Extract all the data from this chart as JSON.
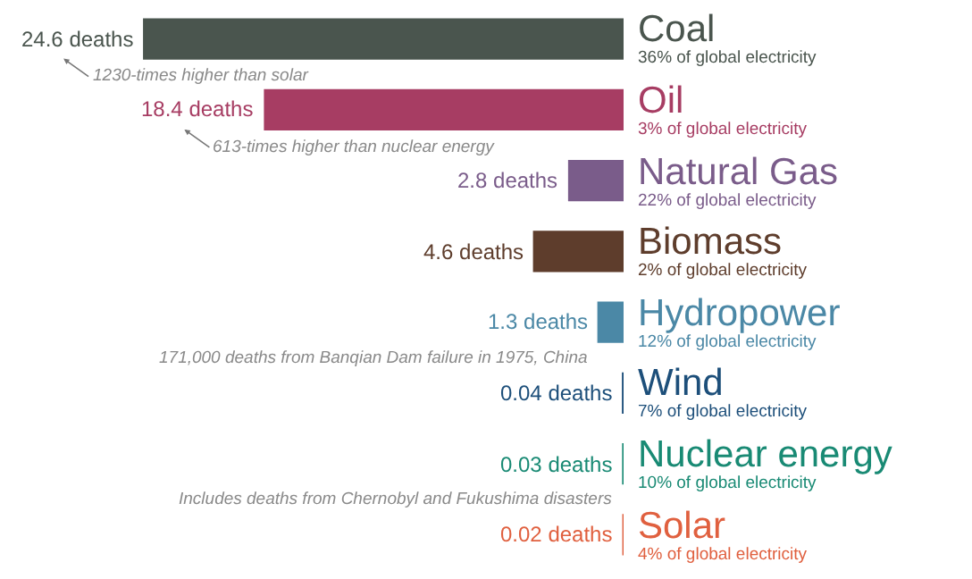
{
  "chart_data": {
    "type": "bar",
    "orientation": "horizontal",
    "categories": [
      "Coal",
      "Oil",
      "Natural Gas",
      "Biomass",
      "Hydropower",
      "Wind",
      "Nuclear energy",
      "Solar"
    ],
    "values": [
      24.6,
      18.4,
      2.8,
      4.6,
      1.3,
      0.04,
      0.03,
      0.02
    ],
    "value_labels": [
      "24.6 deaths",
      "18.4 deaths",
      "2.8 deaths",
      "4.6 deaths",
      "1.3 deaths",
      "0.04 deaths",
      "0.03 deaths",
      "0.02 deaths"
    ],
    "colors": [
      "#4a554e",
      "#a73d63",
      "#7a5c8a",
      "#5e3d2c",
      "#4b88a6",
      "#1d4f7a",
      "#198a74",
      "#e0603f"
    ],
    "annotations": [
      "36% of global electricity",
      "3% of global electricity",
      "22% of global electricity",
      "2% of global electricity",
      "12% of global electricity",
      "7% of global electricity",
      "10% of global electricity",
      "4% of global electricity",
      {
        "text": "1230-times higher than solar",
        "x": 24.6,
        "y": "Coal"
      },
      {
        "text": "613-times higher than nuclear energy",
        "x": 18.4,
        "y": "Oil"
      },
      {
        "text": "171,000 deaths from Banqian Dam failure in 1975, China",
        "x": 1.3,
        "y": "Hydropower"
      },
      {
        "text": "Includes deaths from Chernobyl and Fukushima disasters",
        "x": 0.03,
        "y": "Nuclear energy"
      }
    ],
    "grid": false,
    "legend": false
  }
}
